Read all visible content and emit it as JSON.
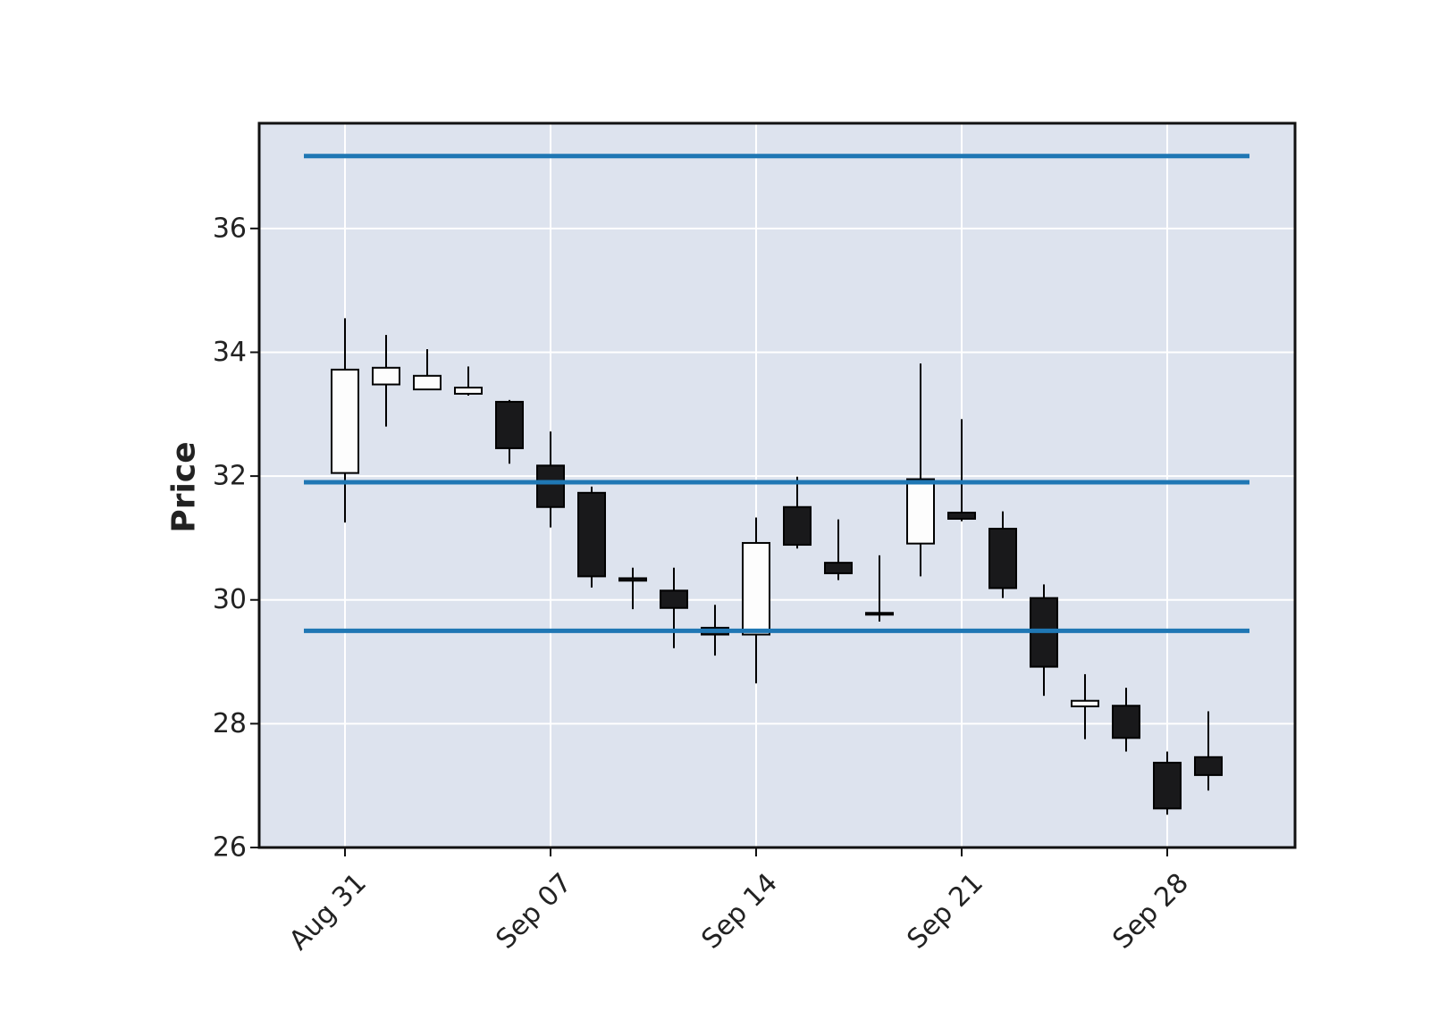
{
  "chart_data": {
    "type": "candlestick",
    "title": "",
    "xlabel": "",
    "ylabel": "Price",
    "ylim": [
      26,
      37.7
    ],
    "yticks": [
      26,
      28,
      30,
      32,
      34,
      36
    ],
    "grid": true,
    "background_color": "#dde3ee",
    "grid_color": "#ffffff",
    "up_color": "#fdfdfd",
    "down_color": "#19191b",
    "edge_color": "#000000",
    "hline_color": "#1f77b4",
    "xtick_labels": [
      {
        "date": "2020-08-31",
        "label": "Aug 31"
      },
      {
        "date": "2020-09-07",
        "label": "Sep 07"
      },
      {
        "date": "2020-09-14",
        "label": "Sep 14"
      },
      {
        "date": "2020-09-21",
        "label": "Sep 21"
      },
      {
        "date": "2020-09-28",
        "label": "Sep 28"
      }
    ],
    "candles": [
      {
        "date": "2020-08-31",
        "open": 32.05,
        "high": 34.55,
        "low": 31.25,
        "close": 33.72
      },
      {
        "date": "2020-09-01",
        "open": 33.48,
        "high": 34.28,
        "low": 32.8,
        "close": 33.75
      },
      {
        "date": "2020-09-02",
        "open": 33.4,
        "high": 34.05,
        "low": 33.4,
        "close": 33.62
      },
      {
        "date": "2020-09-03",
        "open": 33.33,
        "high": 33.77,
        "low": 33.3,
        "close": 33.43
      },
      {
        "date": "2020-09-04",
        "open": 33.2,
        "high": 33.23,
        "low": 32.2,
        "close": 32.45
      },
      {
        "date": "2020-09-07",
        "open": 32.17,
        "high": 32.72,
        "low": 31.17,
        "close": 31.5
      },
      {
        "date": "2020-09-08",
        "open": 31.73,
        "high": 31.83,
        "low": 30.2,
        "close": 30.38
      },
      {
        "date": "2020-09-09",
        "open": 30.35,
        "high": 30.52,
        "low": 29.85,
        "close": 30.31
      },
      {
        "date": "2020-09-10",
        "open": 30.15,
        "high": 30.52,
        "low": 29.22,
        "close": 29.87
      },
      {
        "date": "2020-09-11",
        "open": 29.55,
        "high": 29.92,
        "low": 29.1,
        "close": 29.44
      },
      {
        "date": "2020-09-14",
        "open": 29.44,
        "high": 31.33,
        "low": 28.65,
        "close": 30.92
      },
      {
        "date": "2020-09-15",
        "open": 31.5,
        "high": 31.99,
        "low": 30.83,
        "close": 30.89
      },
      {
        "date": "2020-09-16",
        "open": 30.6,
        "high": 31.3,
        "low": 30.32,
        "close": 30.43
      },
      {
        "date": "2020-09-17",
        "open": 29.77,
        "high": 30.72,
        "low": 29.65,
        "close": 29.79
      },
      {
        "date": "2020-09-18",
        "open": 30.91,
        "high": 33.82,
        "low": 30.38,
        "close": 31.95
      },
      {
        "date": "2020-09-21",
        "open": 31.41,
        "high": 32.92,
        "low": 31.27,
        "close": 31.31
      },
      {
        "date": "2020-09-22",
        "open": 31.15,
        "high": 31.43,
        "low": 30.03,
        "close": 30.19
      },
      {
        "date": "2020-09-23",
        "open": 30.03,
        "high": 30.25,
        "low": 28.45,
        "close": 28.92
      },
      {
        "date": "2020-09-24",
        "open": 28.28,
        "high": 28.8,
        "low": 27.75,
        "close": 28.37
      },
      {
        "date": "2020-09-25",
        "open": 28.29,
        "high": 28.58,
        "low": 27.55,
        "close": 27.77
      },
      {
        "date": "2020-09-28",
        "open": 27.37,
        "high": 27.55,
        "low": 26.53,
        "close": 26.63
      },
      {
        "date": "2020-09-29",
        "open": 27.46,
        "high": 28.2,
        "low": 26.92,
        "close": 27.17
      }
    ],
    "hlines": [
      37.17,
      31.9,
      29.5
    ]
  }
}
